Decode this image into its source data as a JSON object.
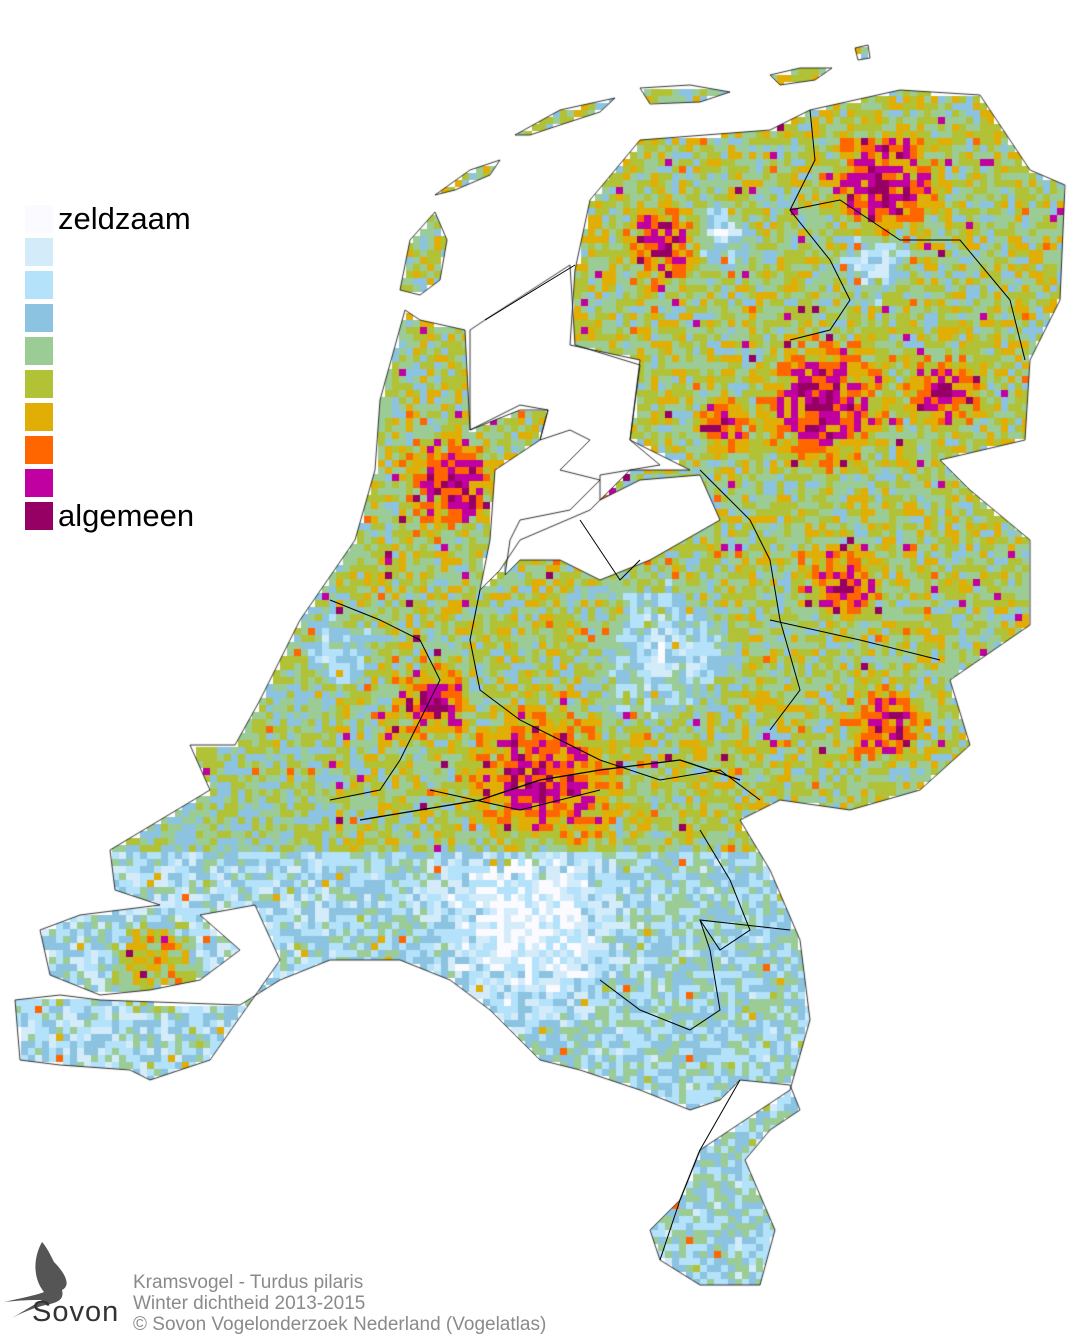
{
  "legend": {
    "low_label": "zeldzaam",
    "high_label": "algemeen",
    "colors": [
      "#fafaff",
      "#d4ecfa",
      "#b3e2fa",
      "#8bc3e0",
      "#9ccc96",
      "#b2c236",
      "#e0ae04",
      "#ff6600",
      "#c000a0",
      "#960064"
    ]
  },
  "caption": {
    "species": "Kramsvogel - Turdus pilaris",
    "subtitle": "Winter dichtheid 2013-2015",
    "copyright": "© Sovon Vogelonderzoek Nederland (Vogelatlas)"
  },
  "logo": {
    "text": "Sovon"
  },
  "map": {
    "border_color": "#000000",
    "coast_color": "#000000"
  }
}
